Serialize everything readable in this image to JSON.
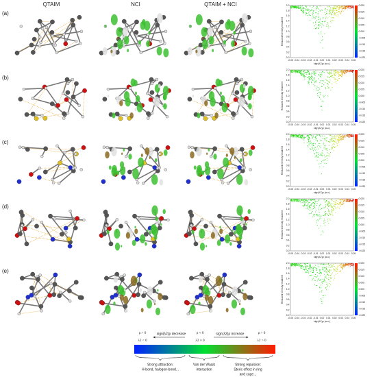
{
  "columns": [
    "QTAIM",
    "NCI",
    "QTAIM + NCI"
  ],
  "rows": [
    "(a)",
    "(b)",
    "(c)",
    "(d)",
    "(e)"
  ],
  "plot": {
    "ylabel": "Reduced Density Gradient",
    "xlabel": "sign(λ2)ρ (a.u.)",
    "yticks": [
      "0.0",
      "0.2",
      "0.4",
      "0.6",
      "0.8",
      "1.0",
      "1.2",
      "1.4",
      "1.6",
      "1.8",
      "2.0"
    ],
    "xticks": [
      "-0.05",
      "-0.04",
      "-0.03",
      "-0.02",
      "-0.01",
      "0.00",
      "0.01",
      "0.02",
      "0.03",
      "0.04",
      "0.05"
    ],
    "colorbar_ticks": [
      "0.020",
      "0.015",
      "0.010",
      "0.005",
      "0.000",
      "-0.005",
      "-0.010",
      "-0.015",
      "-0.020"
    ]
  },
  "legend": {
    "left_top": "ρ > 0",
    "left_bottom": "λ2 < 0",
    "decrease": "sign(λ2)ρ decrease",
    "mid_top": "ρ ≈ 0",
    "mid_bottom": "λ2 ≈ 0",
    "increase": "sign(λ2)ρ increase",
    "right_top": "ρ > 0",
    "right_bottom": "λ2 > 0",
    "attraction": [
      "Strong attraction:",
      "H-bond, halogen-bond..."
    ],
    "vdw": [
      "Van der Waals",
      "interaction"
    ],
    "repulsion": [
      "Strong repulsion:",
      "Steric effect in ring",
      "and cage..."
    ]
  }
}
